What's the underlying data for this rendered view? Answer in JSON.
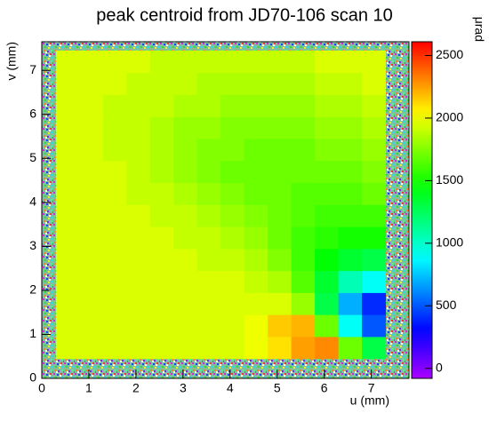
{
  "chart_data": {
    "type": "heatmap",
    "title": "peak centroid from JD70-106 scan 10",
    "x_label": "u (mm)",
    "y_label": "v (mm)",
    "z_label": "μrad",
    "xlim": [
      0,
      7.8
    ],
    "ylim": [
      0,
      7.65
    ],
    "zlim": [
      -80,
      2610
    ],
    "xticks": [
      0,
      1,
      2,
      3,
      4,
      5,
      6,
      7
    ],
    "yticks": [
      0,
      1,
      2,
      3,
      4,
      5,
      6,
      7
    ],
    "zticks": [
      0,
      500,
      1000,
      1500,
      2000,
      2500
    ],
    "xbins": [
      0.3,
      0.8,
      1.3,
      1.8,
      2.3,
      2.8,
      3.3,
      3.8,
      4.3,
      4.8,
      5.3,
      5.8,
      6.3,
      6.8,
      7.3
    ],
    "ybins": [
      0.45,
      0.95,
      1.45,
      1.95,
      2.45,
      2.95,
      3.45,
      3.95,
      4.45,
      4.95,
      5.45,
      5.95,
      6.45,
      6.95,
      7.45
    ],
    "z": [
      [
        1950,
        1950,
        1950,
        1950,
        1950,
        1950,
        1950,
        1950,
        2000,
        2100,
        2250,
        2300,
        1700,
        1300
      ],
      [
        1950,
        1950,
        1950,
        1950,
        1950,
        1950,
        1950,
        1950,
        2000,
        2150,
        2200,
        1700,
        900,
        500
      ],
      [
        1950,
        1950,
        1950,
        1950,
        1950,
        1950,
        1950,
        1950,
        1950,
        1950,
        1800,
        1300,
        700,
        400
      ],
      [
        1950,
        1950,
        1950,
        1950,
        1950,
        1950,
        1950,
        1950,
        1900,
        1850,
        1650,
        1350,
        1050,
        900
      ],
      [
        1950,
        1950,
        1950,
        1950,
        1950,
        1950,
        1900,
        1900,
        1850,
        1750,
        1600,
        1450,
        1350,
        1300
      ],
      [
        1950,
        1950,
        1950,
        1950,
        1950,
        1900,
        1900,
        1850,
        1800,
        1700,
        1600,
        1550,
        1500,
        1500
      ],
      [
        1950,
        1950,
        1950,
        1950,
        1900,
        1900,
        1850,
        1800,
        1750,
        1700,
        1650,
        1600,
        1600,
        1600
      ],
      [
        1950,
        1950,
        1950,
        1900,
        1900,
        1850,
        1800,
        1750,
        1700,
        1700,
        1650,
        1650,
        1650,
        1700
      ],
      [
        1950,
        1950,
        1950,
        1900,
        1850,
        1800,
        1750,
        1700,
        1700,
        1700,
        1700,
        1700,
        1700,
        1750
      ],
      [
        1950,
        1950,
        1900,
        1900,
        1850,
        1800,
        1750,
        1750,
        1700,
        1700,
        1700,
        1750,
        1750,
        1800
      ],
      [
        1950,
        1950,
        1900,
        1900,
        1850,
        1800,
        1800,
        1750,
        1750,
        1750,
        1750,
        1800,
        1800,
        1850
      ],
      [
        1950,
        1950,
        1900,
        1900,
        1900,
        1850,
        1850,
        1800,
        1800,
        1800,
        1800,
        1850,
        1850,
        1900
      ],
      [
        1950,
        1950,
        1950,
        1900,
        1900,
        1900,
        1850,
        1850,
        1850,
        1850,
        1850,
        1900,
        1900,
        1950
      ],
      [
        1950,
        1950,
        1950,
        1950,
        1900,
        1900,
        1900,
        1900,
        1900,
        1900,
        1900,
        1950,
        1950,
        1950
      ]
    ]
  }
}
